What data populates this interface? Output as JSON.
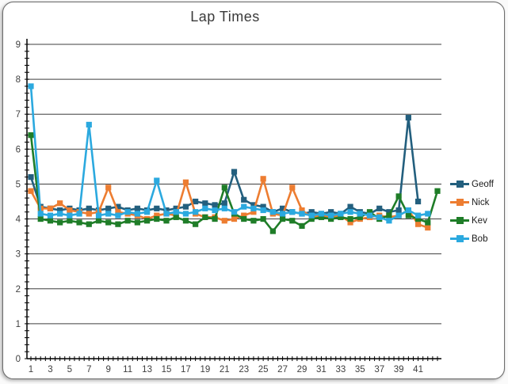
{
  "title": "Lap Times",
  "chart_data": {
    "type": "line",
    "title": "Lap Times",
    "xlabel": "",
    "ylabel": "",
    "x": [
      1,
      2,
      3,
      4,
      5,
      6,
      7,
      8,
      9,
      10,
      11,
      12,
      13,
      14,
      15,
      16,
      17,
      18,
      19,
      20,
      21,
      22,
      23,
      24,
      25,
      26,
      27,
      28,
      29,
      30,
      31,
      32,
      33,
      34,
      35,
      36,
      37,
      38,
      39,
      40,
      41,
      42,
      43
    ],
    "x_tick_labels": [
      "1",
      "3",
      "5",
      "7",
      "9",
      "11",
      "13",
      "15",
      "17",
      "19",
      "21",
      "23",
      "25",
      "27",
      "29",
      "31",
      "33",
      "35",
      "37",
      "39",
      "41"
    ],
    "ylim": [
      0,
      9
    ],
    "y_ticks": [
      0,
      1,
      2,
      3,
      4,
      5,
      6,
      7,
      8,
      9
    ],
    "grid": true,
    "marker": "square",
    "legend_position": "right",
    "series": [
      {
        "name": "Geoff",
        "color": "#235f7e",
        "values": [
          5.2,
          4.35,
          4.3,
          4.25,
          4.3,
          4.25,
          4.3,
          4.25,
          4.3,
          4.35,
          4.25,
          4.3,
          4.25,
          4.3,
          4.25,
          4.3,
          4.35,
          4.5,
          4.45,
          4.4,
          4.45,
          5.35,
          4.55,
          4.4,
          4.35,
          4.2,
          4.3,
          4.2,
          4.15,
          4.2,
          4.15,
          4.2,
          4.15,
          4.35,
          4.2,
          4.15,
          4.3,
          4.2,
          4.25,
          6.9,
          4.5,
          null,
          null
        ]
      },
      {
        "name": "Nick",
        "color": "#ed7d31",
        "values": [
          4.8,
          4.3,
          4.3,
          4.45,
          4.25,
          4.2,
          4.15,
          4.2,
          4.9,
          4.2,
          4.15,
          4.1,
          4.0,
          4.1,
          4.15,
          4.1,
          5.05,
          4.15,
          4.05,
          4.05,
          3.95,
          4.0,
          4.1,
          4.2,
          5.15,
          4.15,
          4.1,
          4.9,
          4.25,
          4.05,
          4.1,
          4.05,
          4.1,
          3.9,
          4.0,
          4.05,
          4.1,
          4.05,
          4.1,
          4.25,
          3.85,
          3.75,
          null
        ]
      },
      {
        "name": "Kev",
        "color": "#1f7d28",
        "values": [
          6.4,
          4.0,
          3.95,
          3.9,
          3.95,
          3.9,
          3.85,
          3.95,
          3.9,
          3.85,
          3.95,
          3.9,
          3.95,
          4.0,
          3.95,
          4.05,
          3.95,
          3.85,
          4.05,
          4.0,
          4.9,
          4.15,
          4.0,
          3.95,
          4.0,
          3.65,
          4.0,
          3.95,
          3.8,
          4.0,
          4.05,
          4.0,
          4.05,
          4.0,
          4.05,
          4.2,
          4.0,
          4.1,
          4.65,
          4.1,
          4.0,
          3.9,
          4.8
        ]
      },
      {
        "name": "Bob",
        "color": "#2ba9df",
        "values": [
          7.8,
          4.15,
          4.1,
          4.15,
          4.1,
          4.15,
          6.7,
          4.1,
          4.15,
          4.1,
          4.2,
          4.15,
          4.2,
          5.1,
          4.15,
          4.2,
          4.15,
          4.2,
          4.3,
          4.25,
          4.3,
          4.2,
          4.35,
          4.3,
          4.25,
          4.2,
          4.15,
          4.2,
          4.15,
          4.1,
          4.15,
          4.1,
          4.15,
          4.2,
          4.15,
          4.1,
          4.05,
          3.95,
          4.1,
          4.25,
          4.1,
          4.15,
          null
        ]
      }
    ],
    "style": {
      "grid_color": "#3f3f3f",
      "axis_color": "#000000",
      "tick_label_color": "#404040",
      "background": "#ffffff"
    }
  }
}
